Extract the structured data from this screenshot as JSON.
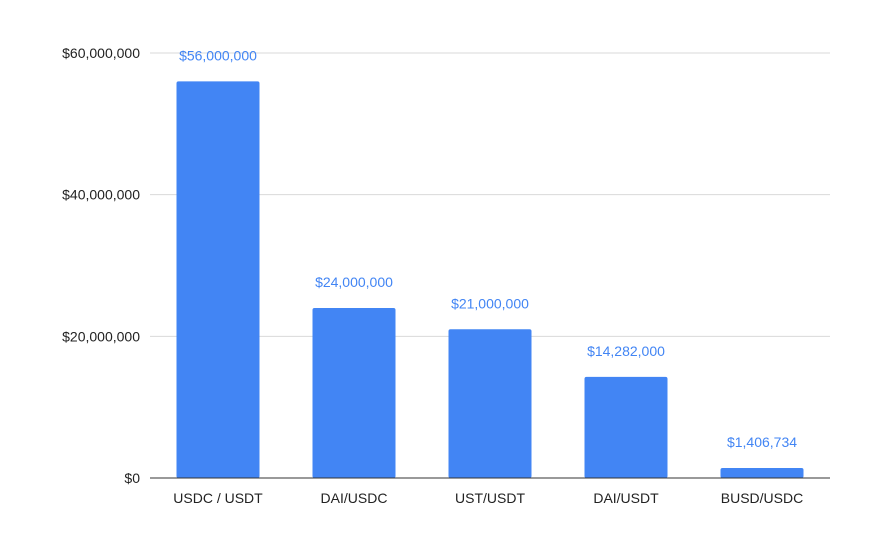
{
  "chart_data": {
    "type": "bar",
    "title": "",
    "xlabel": "",
    "ylabel": "",
    "categories": [
      "USDC / USDT",
      "DAI/USDC",
      "UST/USDT",
      "DAI/USDT",
      "BUSD/USDC"
    ],
    "values": [
      56000000,
      24000000,
      21000000,
      14282000,
      1406734
    ],
    "data_labels": [
      "$56,000,000",
      "$24,000,000",
      "$21,000,000",
      "$14,282,000",
      "$1,406,734"
    ],
    "ylim": [
      0,
      60000000
    ],
    "y_ticks": [
      0,
      20000000,
      40000000,
      60000000
    ],
    "y_tick_labels": [
      "$0",
      "$20,000,000",
      "$40,000,000",
      "$60,000,000"
    ],
    "grid": true,
    "legend": "none",
    "colors": {
      "bar": "#4285f4",
      "data_label": "#4285f4",
      "grid": "#d9d9d9",
      "axis": "#333333",
      "text": "#222222"
    }
  }
}
